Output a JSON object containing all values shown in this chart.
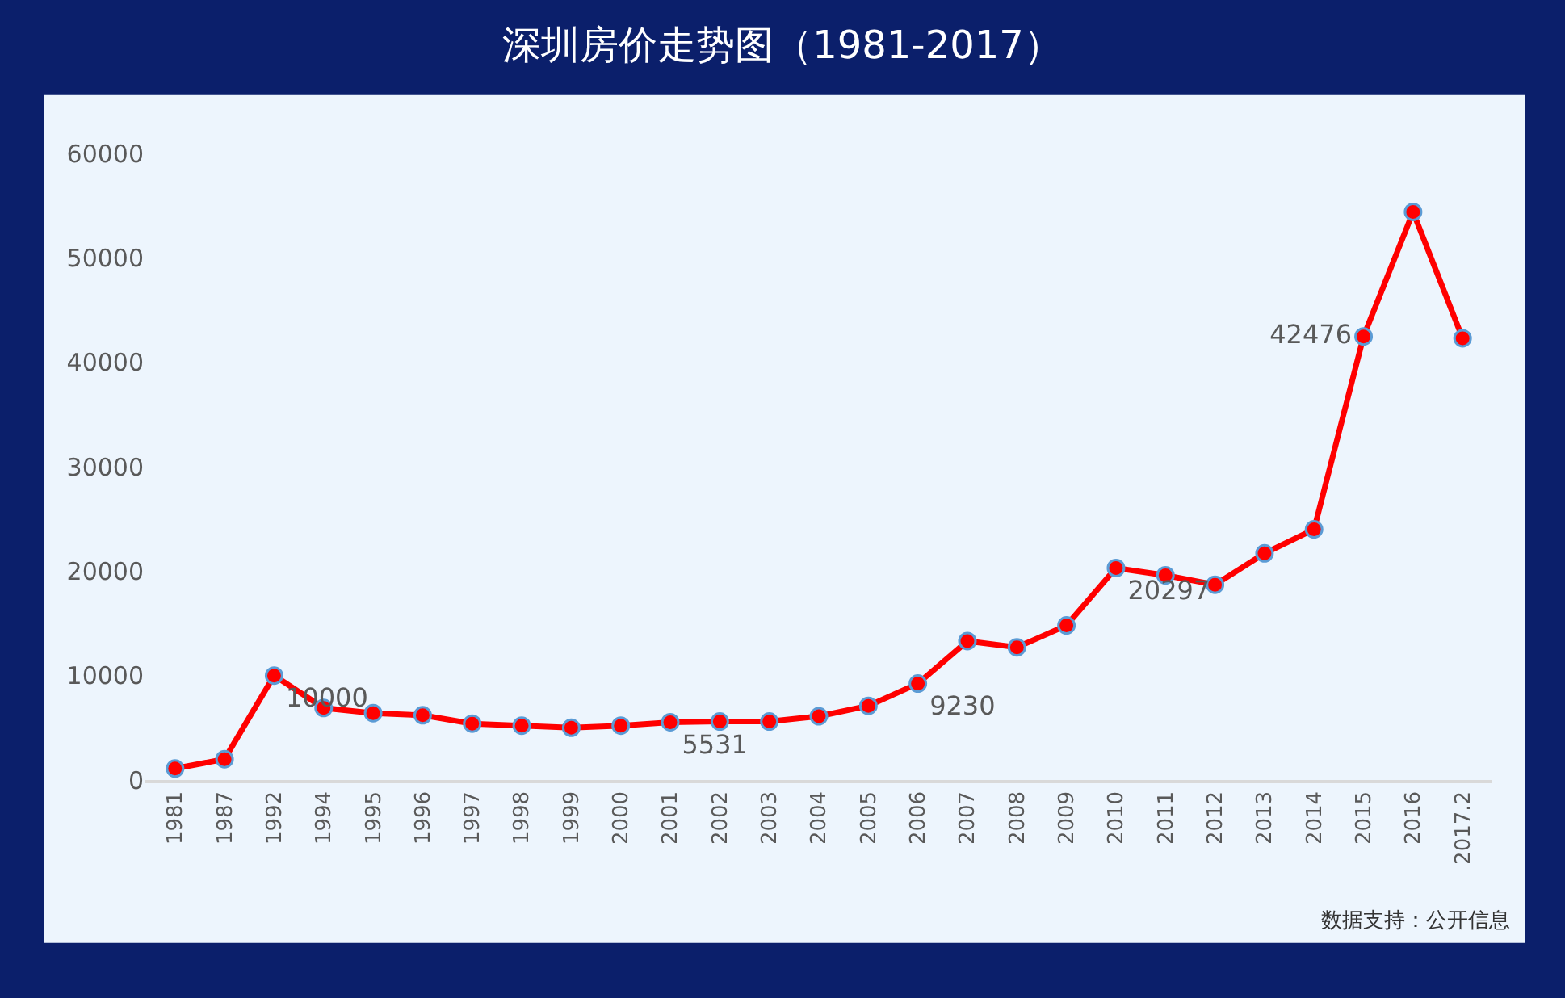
{
  "chart_data": {
    "type": "line",
    "title": "深圳房价走势图（1981-2017）",
    "categories": [
      "1981",
      "1987",
      "1992",
      "1994",
      "1995",
      "1996",
      "1997",
      "1998",
      "1999",
      "2000",
      "2001",
      "2002",
      "2003",
      "2004",
      "2005",
      "2006",
      "2007",
      "2008",
      "2009",
      "2010",
      "2011",
      "2012",
      "2013",
      "2014",
      "2015",
      "2016",
      "2017.2"
    ],
    "series": [
      {
        "color": "#ff0000",
        "values": [
          1100,
          2000,
          10000,
          6900,
          6400,
          6200,
          5400,
          5200,
          5000,
          5200,
          5531,
          5600,
          5600,
          6100,
          7100,
          9230,
          13300,
          12700,
          14800,
          20297,
          19600,
          18700,
          21700,
          24000,
          42476,
          54400,
          42300
        ],
        "value_labels": [
          null,
          null,
          "10000",
          null,
          null,
          null,
          null,
          null,
          null,
          null,
          "5531",
          null,
          null,
          null,
          null,
          "9230",
          null,
          null,
          null,
          "20297",
          null,
          null,
          null,
          null,
          "42476",
          null,
          null
        ]
      }
    ],
    "ylim": [
      0,
      60000
    ],
    "yticks": [
      0,
      10000,
      20000,
      30000,
      40000,
      50000,
      60000
    ],
    "grid": false,
    "legend": false,
    "marker": "circle",
    "line_style": "solid",
    "annotations": [
      "数据支持：公开信息"
    ]
  }
}
